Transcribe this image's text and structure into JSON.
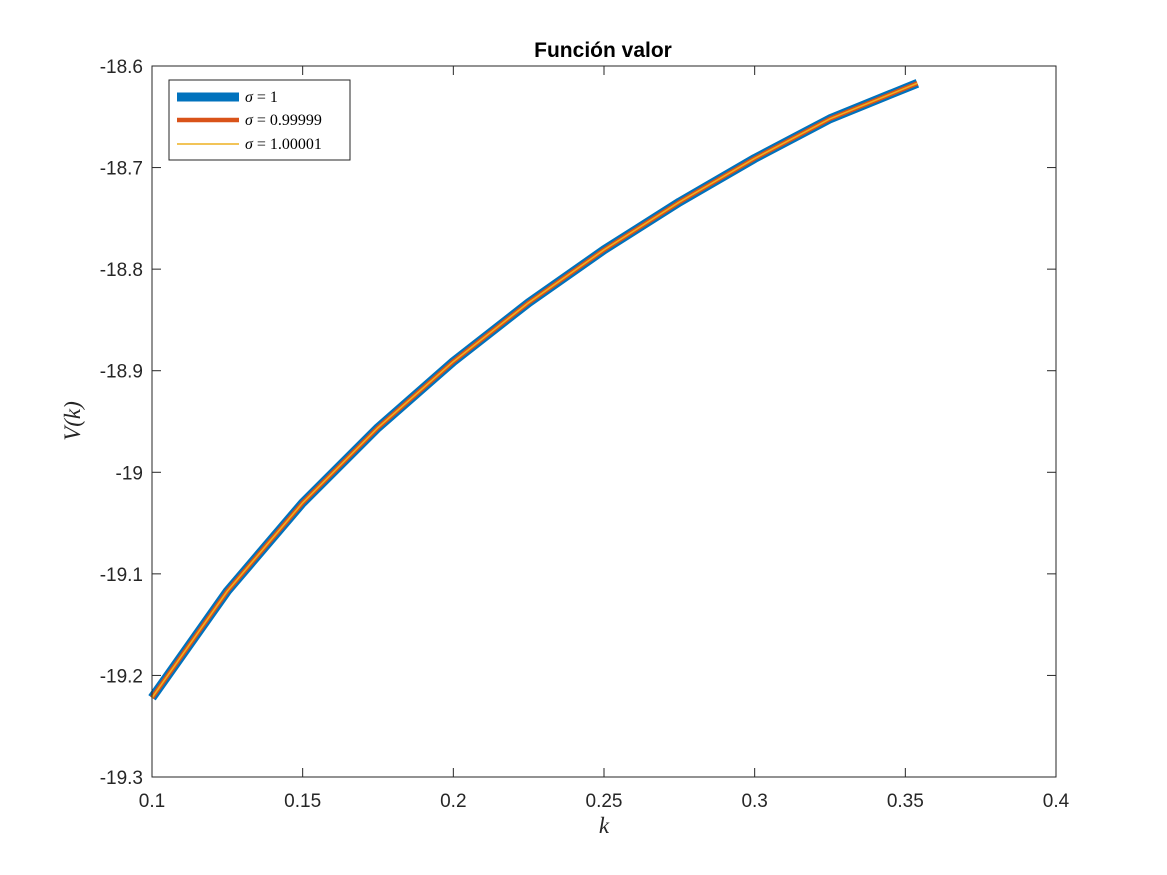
{
  "chart_data": {
    "type": "line",
    "title": "Función valor",
    "xlabel": "k",
    "ylabel": "V(k)",
    "xlim": [
      0.1,
      0.4
    ],
    "ylim": [
      -19.3,
      -18.6
    ],
    "xticks": [
      "0.1",
      "0.15",
      "0.2",
      "0.25",
      "0.3",
      "0.35",
      "0.4"
    ],
    "yticks": [
      "-18.6",
      "-18.7",
      "-18.8",
      "-18.9",
      "-19",
      "-19.1",
      "-19.2",
      "-19.3"
    ],
    "grid": false,
    "legend_position": "top-left",
    "series": [
      {
        "name": "σ = 1",
        "color": "#0072BD",
        "x": [
          0.1,
          0.125,
          0.15,
          0.175,
          0.2,
          0.225,
          0.25,
          0.275,
          0.3,
          0.325,
          0.354
        ],
        "y": [
          -19.222,
          -19.117,
          -19.03,
          -18.956,
          -18.891,
          -18.833,
          -18.781,
          -18.734,
          -18.691,
          -18.652,
          -18.617
        ]
      },
      {
        "name": "σ = 0.99999",
        "color": "#D95319",
        "x": [
          0.1,
          0.125,
          0.15,
          0.175,
          0.2,
          0.225,
          0.25,
          0.275,
          0.3,
          0.325,
          0.354
        ],
        "y": [
          -19.222,
          -19.117,
          -19.03,
          -18.956,
          -18.891,
          -18.833,
          -18.781,
          -18.734,
          -18.691,
          -18.652,
          -18.617
        ]
      },
      {
        "name": "σ = 1.00001",
        "color": "#EDB120",
        "x": [
          0.1,
          0.125,
          0.15,
          0.175,
          0.2,
          0.225,
          0.25,
          0.275,
          0.3,
          0.325,
          0.354
        ],
        "y": [
          -19.222,
          -19.117,
          -19.03,
          -18.956,
          -18.891,
          -18.833,
          -18.781,
          -18.734,
          -18.691,
          -18.652,
          -18.617
        ]
      }
    ],
    "legend": {
      "labels": [
        {
          "sym": "σ",
          "op": " = ",
          "val": "1"
        },
        {
          "sym": "σ",
          "op": " = ",
          "val": "0.99999"
        },
        {
          "sym": "σ",
          "op": " = ",
          "val": "1.00001"
        }
      ]
    }
  }
}
